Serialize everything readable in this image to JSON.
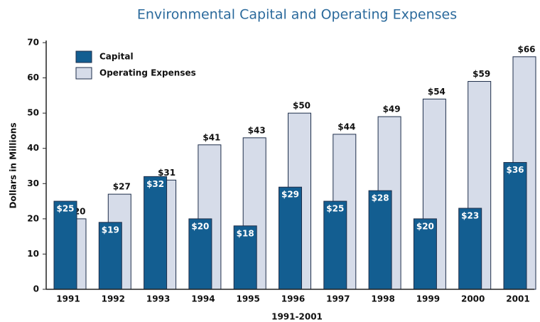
{
  "chart_data": {
    "type": "bar",
    "title": "Environmental Capital and Operating Expenses",
    "x_label": "1991-2001",
    "y_label": "Dollars in Millions",
    "categories": [
      "1991",
      "1992",
      "1993",
      "1994",
      "1995",
      "1996",
      "1997",
      "1998",
      "1999",
      "2000",
      "2001"
    ],
    "series": [
      {
        "name": "Capital",
        "color": "#135e91",
        "values": [
          25,
          19,
          32,
          20,
          18,
          29,
          25,
          28,
          20,
          23,
          36
        ],
        "value_labels": [
          "$25",
          "$19",
          "$32",
          "$20",
          "$18",
          "$29",
          "$25",
          "$28",
          "$20",
          "$23",
          "$36"
        ]
      },
      {
        "name": "Operating Expenses",
        "color": "#d6dce9",
        "values": [
          20,
          27,
          31,
          41,
          43,
          50,
          44,
          49,
          54,
          59,
          66
        ],
        "value_labels": [
          "$20",
          "$27",
          "$31",
          "$41",
          "$43",
          "$50",
          "$44",
          "$49",
          "$54",
          "$59",
          "$66"
        ]
      }
    ],
    "ylim": [
      0,
      70
    ],
    "yticks": [
      0,
      10,
      20,
      30,
      40,
      50,
      60,
      70
    ],
    "legend": "top-left"
  }
}
